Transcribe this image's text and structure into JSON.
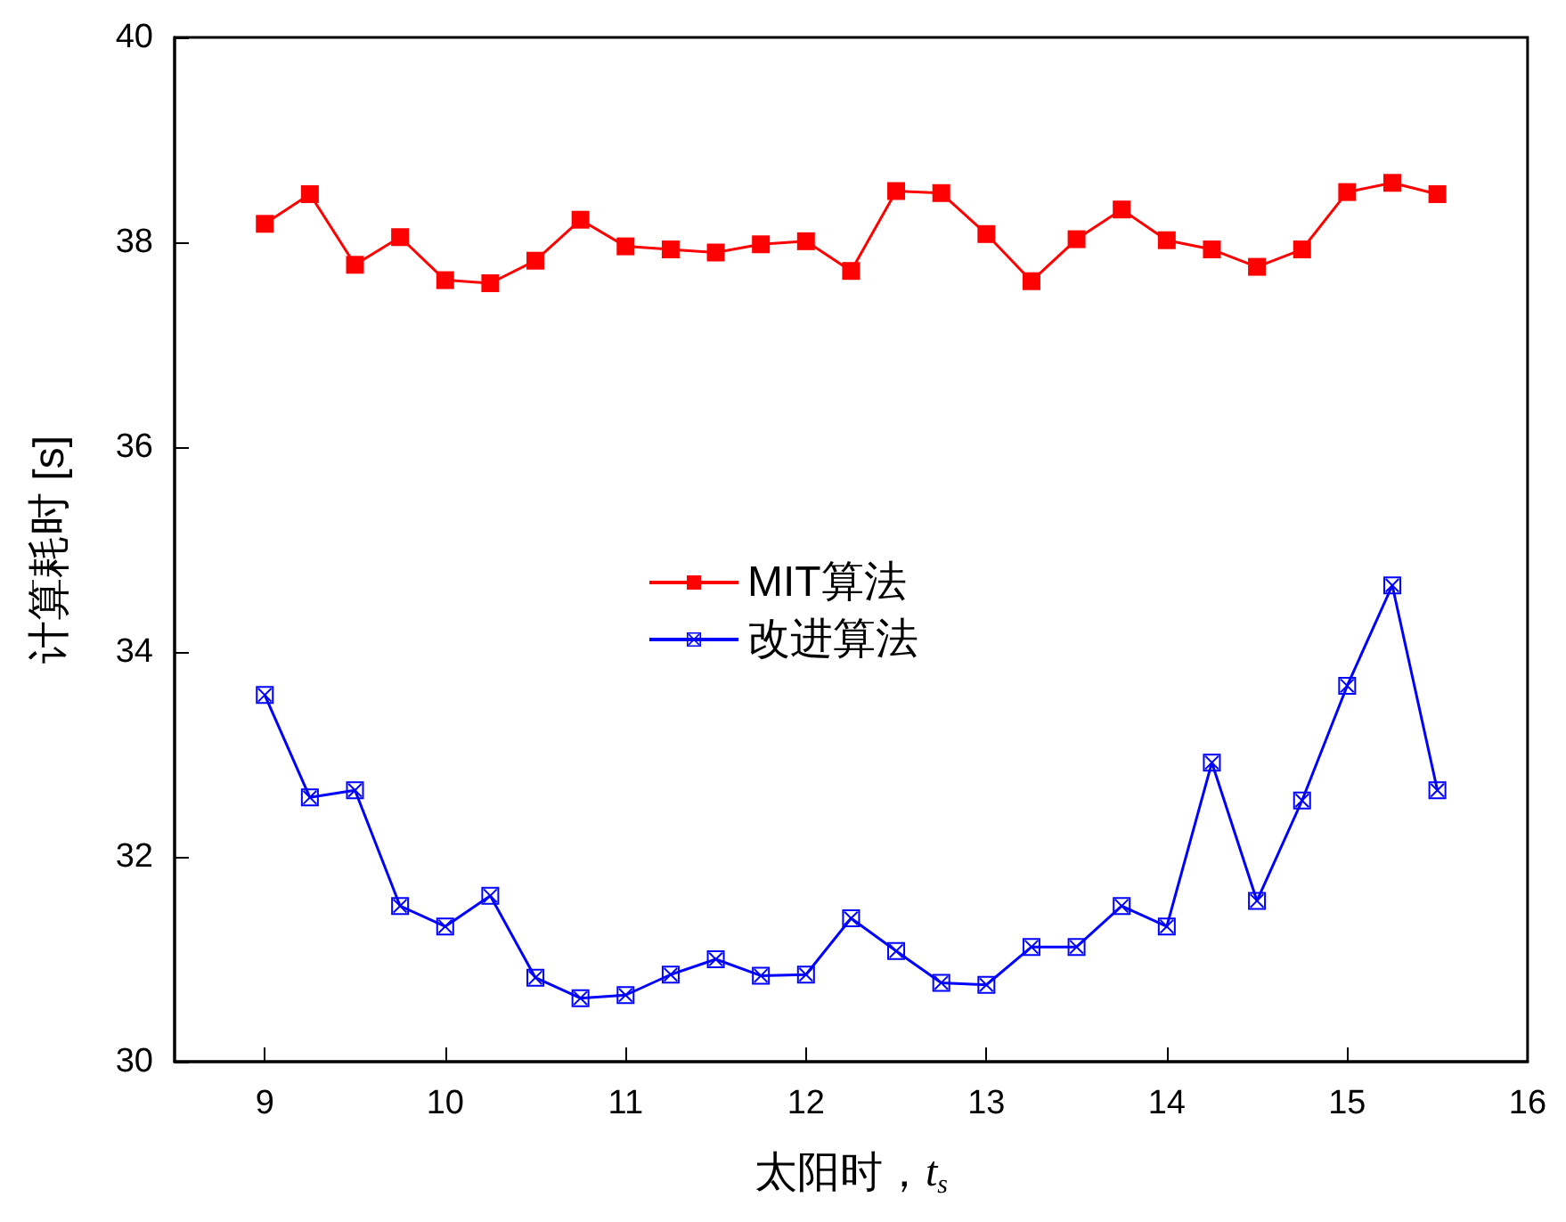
{
  "chart_data": {
    "type": "line",
    "xlabel": "太阳时，t$_{s}$",
    "ylabel": "计算耗时 [s]",
    "x": [
      9,
      9.25,
      9.5,
      9.75,
      10,
      10.25,
      10.5,
      10.75,
      11,
      11.25,
      11.5,
      11.75,
      12,
      12.25,
      12.5,
      12.75,
      13,
      13.25,
      13.5,
      13.75,
      14,
      14.25,
      14.5,
      14.75,
      15,
      15.25,
      15.5
    ],
    "series": [
      {
        "name": "MIT算法",
        "color": "#ff0000",
        "marker": "square",
        "values": [
          38.18,
          38.47,
          37.78,
          38.05,
          37.63,
          37.6,
          37.82,
          38.22,
          37.96,
          37.93,
          37.9,
          37.98,
          38.01,
          37.72,
          38.5,
          38.48,
          38.08,
          37.62,
          38.03,
          38.32,
          38.02,
          37.93,
          37.76,
          37.93,
          38.49,
          38.58,
          38.47
        ]
      },
      {
        "name": "改进算法",
        "color": "#0000ff",
        "marker": "cross",
        "values": [
          33.58,
          32.58,
          32.65,
          31.52,
          31.32,
          31.62,
          30.82,
          30.62,
          30.65,
          30.85,
          31.0,
          30.84,
          30.85,
          31.4,
          31.08,
          30.77,
          30.75,
          31.12,
          31.12,
          31.52,
          31.32,
          32.92,
          31.57,
          32.55,
          33.67,
          34.65,
          32.65
        ]
      }
    ],
    "xlim": [
      8.5,
      16
    ],
    "xticks": [
      9,
      10,
      11,
      12,
      13,
      14,
      15,
      16
    ],
    "ylim": [
      30,
      40
    ],
    "yticks": [
      30,
      32,
      34,
      36,
      38,
      40
    ],
    "grid": false,
    "legend": "center",
    "line_style": "solid"
  }
}
